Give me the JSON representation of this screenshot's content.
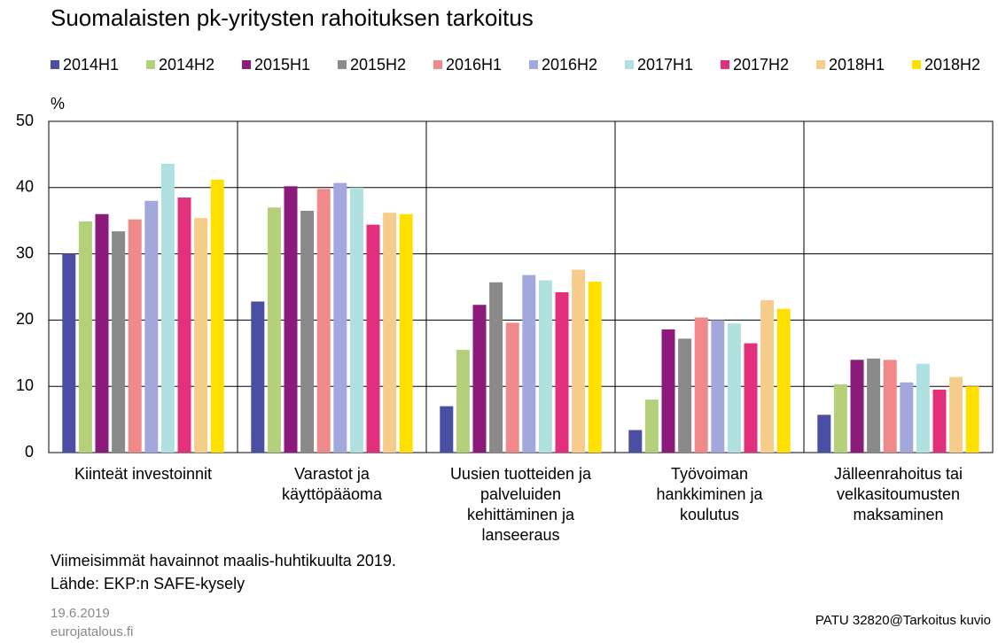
{
  "chart_data": {
    "type": "bar",
    "title": "Suomalaisten pk-yritysten rahoituksen tarkoitus",
    "y_label": "%",
    "categories": [
      "Kiinteät investoinnit",
      "Varastot ja\nkäyttöpääoma",
      "Uusien tuotteiden ja\npalveluiden\nkehittäminen ja\nlanseeraus",
      "Työvoiman\nhankkiminen ja\nkoulutus",
      "Jälleenrahoitus tai\nvelkasitoumusten\nmaksaminen"
    ],
    "series": [
      {
        "name": "2014H1",
        "color": "#4a4fa3",
        "values": [
          30,
          22.8,
          7,
          3.4,
          5.7
        ]
      },
      {
        "name": "2014H2",
        "color": "#b5d07a",
        "values": [
          34.9,
          37,
          15.5,
          8,
          10.3
        ]
      },
      {
        "name": "2015H1",
        "color": "#8b1a7b",
        "values": [
          36,
          40.2,
          22.3,
          18.6,
          14
        ]
      },
      {
        "name": "2015H2",
        "color": "#8a8a8a",
        "values": [
          33.4,
          36.5,
          25.7,
          17.2,
          14.2
        ]
      },
      {
        "name": "2016H1",
        "color": "#f08a8a",
        "values": [
          35.2,
          39.8,
          19.6,
          20.4,
          14
        ]
      },
      {
        "name": "2016H2",
        "color": "#a3a8dc",
        "values": [
          38,
          40.7,
          26.8,
          20,
          10.6
        ]
      },
      {
        "name": "2017H1",
        "color": "#b0e0e0",
        "values": [
          43.6,
          40,
          26,
          19.5,
          13.4
        ]
      },
      {
        "name": "2017H2",
        "color": "#e2307d",
        "values": [
          38.5,
          34.4,
          24.2,
          16.5,
          9.5
        ]
      },
      {
        "name": "2018H1",
        "color": "#f5cc8a",
        "values": [
          35.4,
          36.2,
          27.6,
          23,
          11.4
        ]
      },
      {
        "name": "2018H2",
        "color": "#ffe000",
        "values": [
          41.2,
          36,
          25.8,
          21.7,
          10
        ]
      }
    ],
    "ylim": [
      0,
      50
    ],
    "yticks": [
      0,
      10,
      20,
      30,
      40,
      50
    ],
    "grid": true,
    "notes": [
      "Viimeisimmät havainnot maalis-huhtikuulta 2019.",
      "Lähde: EKP:n SAFE-kysely"
    ],
    "date": "19.6.2019",
    "site": "eurojatalous.fi",
    "code": "PATU 32820@Tarkoitus kuvio"
  }
}
